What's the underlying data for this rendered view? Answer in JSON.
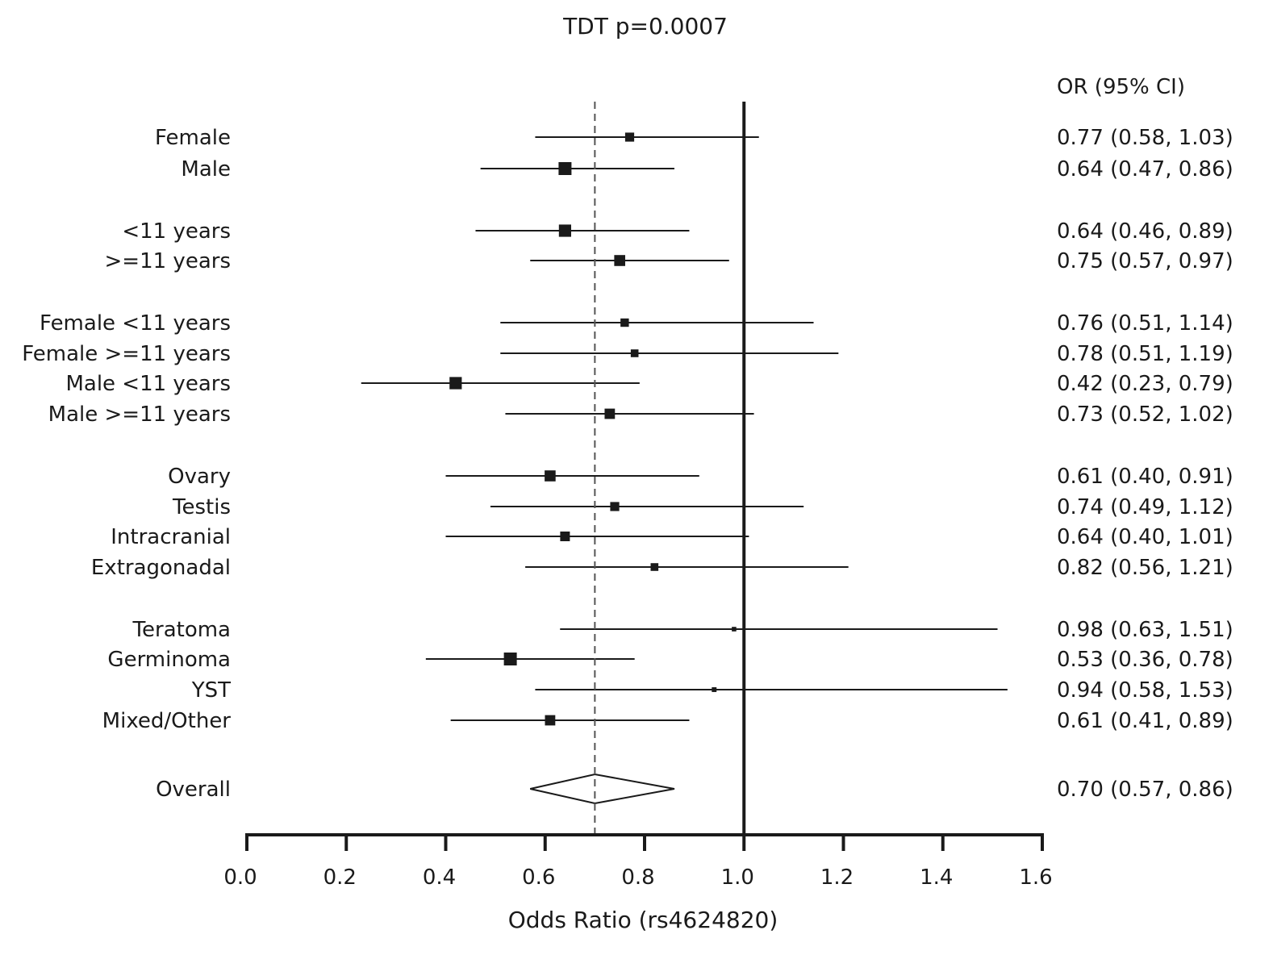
{
  "chart_data": {
    "type": "forest",
    "title": "TDT p=0.0007",
    "xlabel": "Odds Ratio (rs4624820)",
    "ci_header": "OR (95% CI)",
    "xlim": [
      0.0,
      1.6
    ],
    "x_ticks": [
      "0.0",
      "0.2",
      "0.4",
      "0.6",
      "0.8",
      "1.0",
      "1.2",
      "1.4",
      "1.6"
    ],
    "x_tick_values": [
      0.0,
      0.2,
      0.4,
      0.6,
      0.8,
      1.0,
      1.2,
      1.4,
      1.6
    ],
    "reference_line": 1.0,
    "overall_dashed_line": 0.7,
    "rows": [
      {
        "label": "Female",
        "or": 0.77,
        "lower": 0.58,
        "upper": 1.03,
        "text": "0.77 (0.58, 1.03)",
        "group": 0,
        "weight": 0.45
      },
      {
        "label": "Male",
        "or": 0.64,
        "lower": 0.47,
        "upper": 0.86,
        "text": "0.64 (0.47, 0.86)",
        "group": 0,
        "weight": 0.75
      },
      {
        "label": "<11 years",
        "or": 0.64,
        "lower": 0.46,
        "upper": 0.89,
        "text": "0.64 (0.46, 0.89)",
        "group": 1,
        "weight": 0.7
      },
      {
        "label": ">=11 years",
        "or": 0.75,
        "lower": 0.57,
        "upper": 0.97,
        "text": "0.75 (0.57, 0.97)",
        "group": 1,
        "weight": 0.6
      },
      {
        "label": "Female <11 years",
        "or": 0.76,
        "lower": 0.51,
        "upper": 1.14,
        "text": "0.76 (0.51, 1.14)",
        "group": 2,
        "weight": 0.4
      },
      {
        "label": "Female >=11 years",
        "or": 0.78,
        "lower": 0.51,
        "upper": 1.19,
        "text": "0.78 (0.51, 1.19)",
        "group": 2,
        "weight": 0.35
      },
      {
        "label": "Male <11 years",
        "or": 0.42,
        "lower": 0.23,
        "upper": 0.79,
        "text": "0.42 (0.23, 0.79)",
        "group": 2,
        "weight": 0.7
      },
      {
        "label": "Male >=11 years",
        "or": 0.73,
        "lower": 0.52,
        "upper": 1.02,
        "text": "0.73 (0.52, 1.02)",
        "group": 2,
        "weight": 0.55
      },
      {
        "label": "Ovary",
        "or": 0.61,
        "lower": 0.4,
        "upper": 0.91,
        "text": "0.61 (0.40, 0.91)",
        "group": 3,
        "weight": 0.6
      },
      {
        "label": "Testis",
        "or": 0.74,
        "lower": 0.49,
        "upper": 1.12,
        "text": "0.74 (0.49, 1.12)",
        "group": 3,
        "weight": 0.45
      },
      {
        "label": "Intracranial",
        "or": 0.64,
        "lower": 0.4,
        "upper": 1.01,
        "text": "0.64 (0.40, 1.01)",
        "group": 3,
        "weight": 0.5
      },
      {
        "label": "Extragonadal",
        "or": 0.82,
        "lower": 0.56,
        "upper": 1.21,
        "text": "0.82 (0.56, 1.21)",
        "group": 3,
        "weight": 0.35
      },
      {
        "label": "Teratoma",
        "or": 0.98,
        "lower": 0.63,
        "upper": 1.51,
        "text": "0.98 (0.63, 1.51)",
        "group": 4,
        "weight": 0.1
      },
      {
        "label": "Germinoma",
        "or": 0.53,
        "lower": 0.36,
        "upper": 0.78,
        "text": "0.53 (0.36, 0.78)",
        "group": 4,
        "weight": 0.75
      },
      {
        "label": "YST",
        "or": 0.94,
        "lower": 0.58,
        "upper": 1.53,
        "text": "0.94 (0.58, 1.53)",
        "group": 4,
        "weight": 0.12
      },
      {
        "label": "Mixed/Other",
        "or": 0.61,
        "lower": 0.41,
        "upper": 0.89,
        "text": "0.61 (0.41, 0.89)",
        "group": 4,
        "weight": 0.55
      }
    ],
    "overall": {
      "label": "Overall",
      "or": 0.7,
      "lower": 0.57,
      "upper": 0.86,
      "text": "0.70 (0.57, 0.86)"
    },
    "grid": false,
    "legend": "none"
  }
}
